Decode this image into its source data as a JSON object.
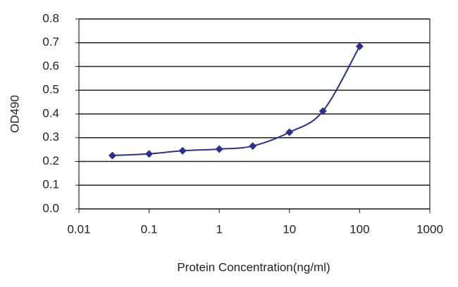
{
  "chart_data": {
    "type": "line",
    "x_label": "Protein Concentration(ng/ml)",
    "y_label": "OD490",
    "x": [
      0.03,
      0.1,
      0.3,
      1,
      3,
      10,
      30,
      100
    ],
    "series": [
      {
        "color": "#2b2f8f",
        "values": [
          0.225,
          0.232,
          0.245,
          0.252,
          0.265,
          0.323,
          0.412,
          0.685
        ]
      }
    ],
    "x_log_scale": true,
    "xlim": [
      0.01,
      1000
    ],
    "xticks": [
      0.01,
      0.1,
      1,
      10,
      100,
      1000
    ],
    "ylim": [
      0,
      0.8
    ],
    "yticks": [
      {
        "value": 0,
        "label": "0.0"
      },
      0.1,
      0.2,
      0.3,
      0.4,
      0.5,
      0.6,
      0.7,
      0.8
    ],
    "grid": true
  }
}
